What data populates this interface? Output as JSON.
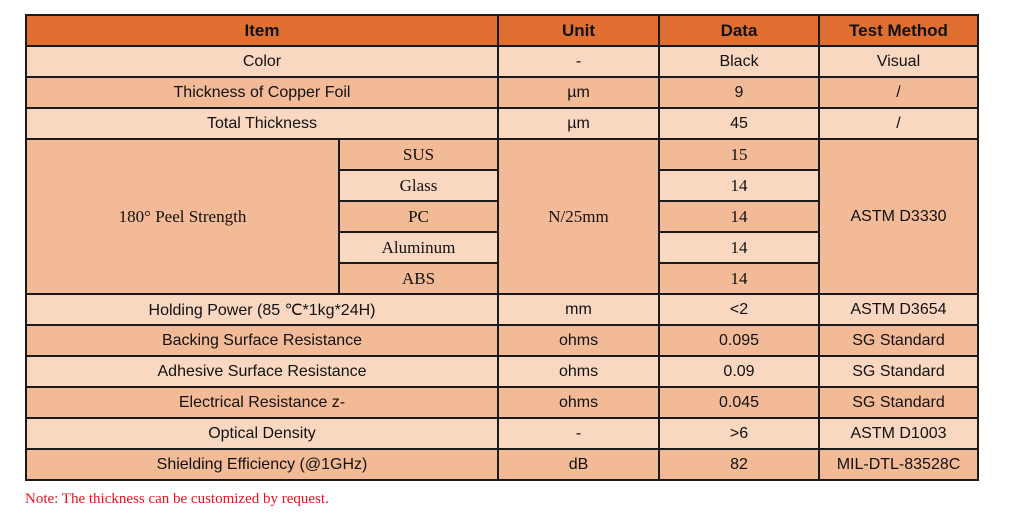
{
  "colors": {
    "header": "#E06E30",
    "row_light": "#FAD7C0",
    "row_dark": "#F3BA98",
    "note": "#E8141E"
  },
  "headers": {
    "item": "Item",
    "unit": "Unit",
    "data": "Data",
    "method": "Test Method"
  },
  "rows": [
    {
      "item": "Color",
      "unit": "-",
      "data": "Black",
      "method": "Visual"
    },
    {
      "item": "Thickness of Copper Foil",
      "unit": "µm",
      "data": "9",
      "method": "/"
    },
    {
      "item": "Total Thickness",
      "unit": "µm",
      "data": "45",
      "method": "/"
    }
  ],
  "peel": {
    "item": "180° Peel Strength",
    "unit": "N/25mm",
    "method": "ASTM D3330",
    "sub": [
      {
        "name": "SUS",
        "data": "15"
      },
      {
        "name": "Glass",
        "data": "14"
      },
      {
        "name": "PC",
        "data": "14"
      },
      {
        "name": "Aluminum",
        "data": "14"
      },
      {
        "name": "ABS",
        "data": "14"
      }
    ]
  },
  "rows2": [
    {
      "item": "Holding Power (85 ℃*1kg*24H)",
      "unit": "mm",
      "data": "<2",
      "method": "ASTM D3654"
    },
    {
      "item": "Backing Surface Resistance",
      "unit": "ohms",
      "data": "0.095",
      "method": "SG Standard"
    },
    {
      "item": "Adhesive Surface Resistance",
      "unit": "ohms",
      "data": "0.09",
      "method": "SG Standard"
    },
    {
      "item": "Electrical Resistance z-",
      "unit": "ohms",
      "data": "0.045",
      "method": "SG Standard"
    },
    {
      "item": "Optical Density",
      "unit": "-",
      "data": ">6",
      "method": "ASTM D1003"
    },
    {
      "item": "Shielding Efficiency (@1GHz)",
      "unit": "dB",
      "data": "82",
      "method": "MIL-DTL-83528C"
    }
  ],
  "note": "Note: The thickness can be customized by request."
}
